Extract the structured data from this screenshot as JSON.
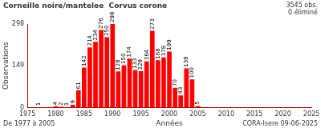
{
  "chart_data": {
    "type": "bar",
    "title": "Corneille noire/mantelee  Corvus corone",
    "annotations": [
      "3545 obs.",
      "0 éliminé",
      "De 1977 à 2005",
      "CORA-Isere 09-06-2025"
    ],
    "x_label": "Années",
    "y_label": "Observations",
    "x": [
      1977,
      1980,
      1981,
      1982,
      1983,
      1984,
      1985,
      1986,
      1987,
      1988,
      1989,
      1990,
      1991,
      1992,
      1993,
      1994,
      1995,
      1996,
      1997,
      1998,
      1999,
      2000,
      2001,
      2002,
      2003,
      2004,
      2005
    ],
    "values": [
      1,
      4,
      2,
      1,
      9,
      61,
      142,
      214,
      234,
      276,
      250,
      298,
      128,
      150,
      174,
      133,
      129,
      164,
      273,
      168,
      178,
      199,
      70,
      43,
      139,
      100,
      5
    ],
    "color": "#ff0000",
    "xlim": [
      1975,
      2025
    ],
    "xticks": [
      1975,
      1980,
      1985,
      1990,
      1995,
      2000,
      2005,
      2010,
      2015,
      2020,
      2025
    ],
    "ylim": [
      0,
      298
    ],
    "yticks": [
      0,
      149,
      298
    ],
    "grid": false,
    "data_labels": true
  }
}
